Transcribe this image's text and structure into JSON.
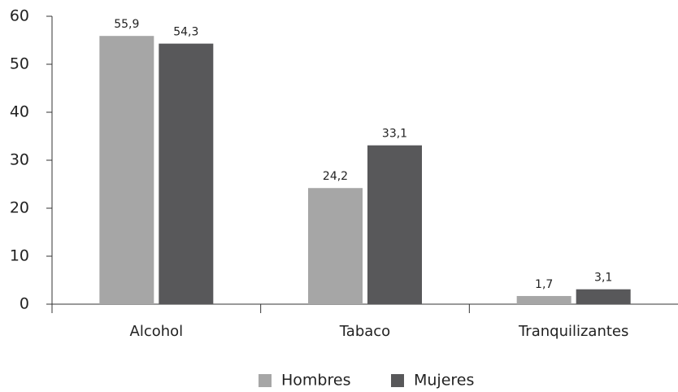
{
  "chart_data": {
    "type": "bar",
    "categories": [
      "Alcohol",
      "Tabaco",
      "Tranquilizantes"
    ],
    "series": [
      {
        "name": "Hombres",
        "color": "#a6a6a6",
        "values": [
          55.9,
          24.2,
          1.7
        ],
        "value_labels": [
          "55,9",
          "24,2",
          "1,7"
        ]
      },
      {
        "name": "Mujeres",
        "color": "#58585a",
        "values": [
          54.3,
          33.1,
          3.1
        ],
        "value_labels": [
          "54,3",
          "33,1",
          "3,1"
        ]
      }
    ],
    "ylim": [
      0,
      60
    ],
    "yticks": [
      0,
      10,
      20,
      30,
      40,
      50,
      60
    ],
    "grid": false,
    "legend": "bottom"
  }
}
